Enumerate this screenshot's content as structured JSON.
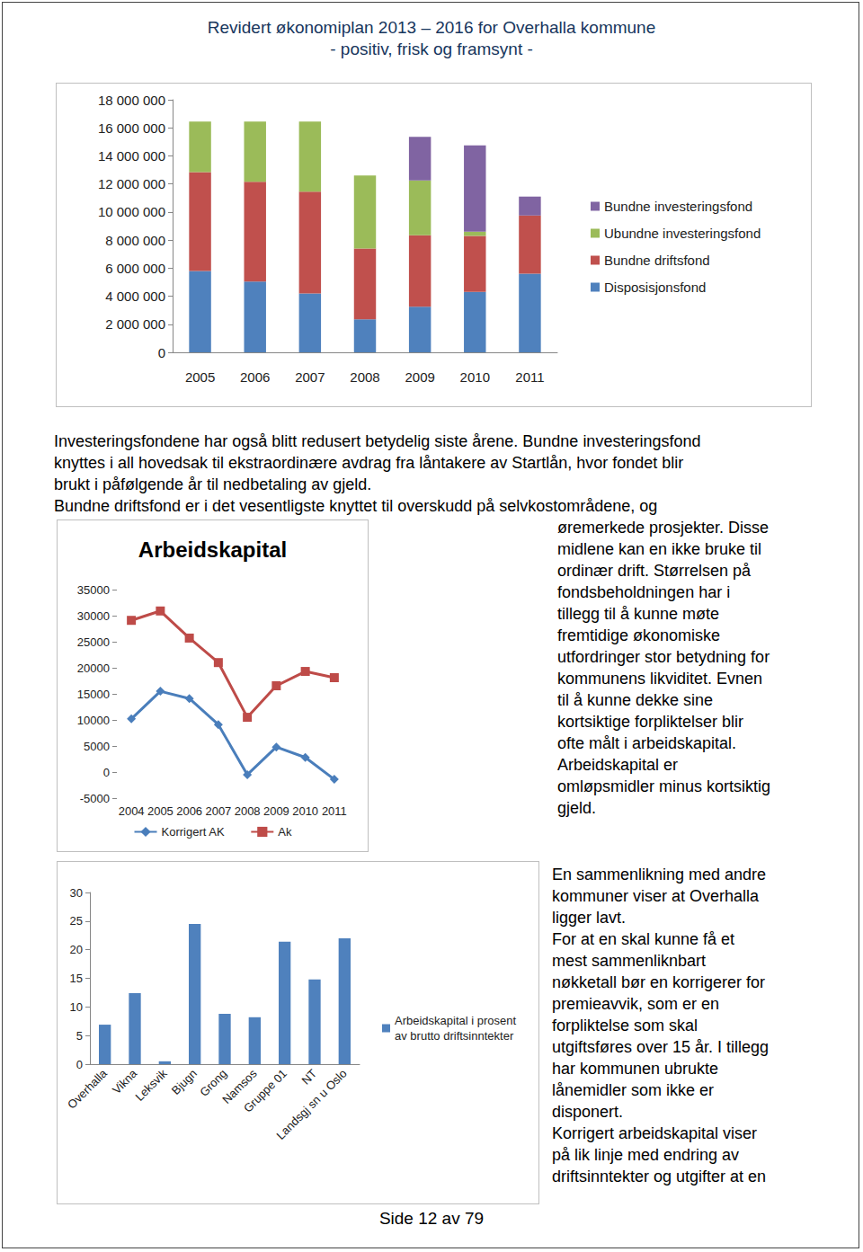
{
  "header": {
    "title": "Revidert økonomiplan 2013 – 2016 for Overhalla kommune",
    "subtitle": "- positiv, frisk og framsynt -"
  },
  "chart_data": [
    {
      "type": "bar",
      "stacked": true,
      "categories": [
        "2005",
        "2006",
        "2007",
        "2008",
        "2009",
        "2010",
        "2011"
      ],
      "series": [
        {
          "name": "Disposisjonsfond",
          "color": "#4f81bd",
          "values": [
            5800000,
            5050000,
            4200000,
            2350000,
            3250000,
            4300000,
            5600000
          ]
        },
        {
          "name": "Bundne driftsfond",
          "color": "#c0504d",
          "values": [
            7050000,
            7100000,
            7250000,
            5050000,
            5100000,
            4000000,
            4150000
          ]
        },
        {
          "name": "Ubundne investeringsfond",
          "color": "#9bbb59",
          "values": [
            3600000,
            4300000,
            5000000,
            5200000,
            3900000,
            300000,
            0
          ]
        },
        {
          "name": "Bundne investeringsfond",
          "color": "#8064a2",
          "values": [
            0,
            0,
            0,
            0,
            3100000,
            6150000,
            1350000
          ]
        }
      ],
      "ylim": [
        0,
        18000000
      ],
      "yticks": [
        0,
        {
          "value": 2000000,
          "label": "2 000 000"
        },
        {
          "value": 4000000,
          "label": "4 000 000"
        },
        {
          "value": 6000000,
          "label": "6 000 000"
        },
        {
          "value": 8000000,
          "label": "8 000 000"
        },
        {
          "value": 10000000,
          "label": "10 000 000"
        },
        {
          "value": 12000000,
          "label": "12 000 000"
        },
        {
          "value": 14000000,
          "label": "14 000 000"
        },
        {
          "value": 16000000,
          "label": "16 000 000"
        },
        {
          "value": 18000000,
          "label": "18 000 000"
        }
      ],
      "grid": false,
      "legend": "right"
    },
    {
      "type": "line",
      "title": "Arbeidskapital",
      "categories": [
        "2004",
        "2005",
        "2006",
        "2007",
        "2008",
        "2009",
        "2010",
        "2011"
      ],
      "series": [
        {
          "name": "Korrigert AK",
          "color": "#4a7ebb",
          "marker": "diamond",
          "values": [
            10200,
            15500,
            14100,
            9100,
            -500,
            4800,
            2800,
            -1400
          ]
        },
        {
          "name": "Ak",
          "color": "#be4b48",
          "marker": "square",
          "values": [
            29100,
            30900,
            25700,
            21000,
            10500,
            16550,
            19300,
            18100
          ]
        }
      ],
      "ylim": [
        -5000,
        35000
      ],
      "yticks": [
        -5000,
        0,
        5000,
        10000,
        15000,
        20000,
        25000,
        30000,
        35000
      ],
      "grid": false,
      "legend": "bottom"
    },
    {
      "type": "bar",
      "categories": [
        "Overhalla",
        "Vikna",
        "Leksvik",
        "Bjugn",
        "Grong",
        "Namsos",
        "Gruppe 01",
        "NT",
        "Landsgj sn u Oslo"
      ],
      "series": [
        {
          "name": "Arbeidskapital i prosent av brutto driftsinntekter",
          "color": "#4f81bd",
          "values": [
            6.9,
            12.4,
            0.5,
            24.5,
            8.8,
            8.2,
            21.4,
            14.8,
            22.0
          ]
        }
      ],
      "ylim": [
        0,
        30
      ],
      "yticks": [
        0,
        5,
        10,
        15,
        20,
        25,
        30
      ],
      "grid": false,
      "legend": "right"
    }
  ],
  "text": {
    "paragraph_full": [
      "Investeringsfondene har også blitt redusert betydelig siste årene. Bundne investeringsfond",
      "knyttes i all hovedsak til ekstraordinære avdrag fra låntakere av Startlån, hvor fondet blir",
      "brukt i påfølgende år til nedbetaling av gjeld.",
      "Bundne driftsfond er i det vesentligste knyttet til overskudd på selvkostområdene, og"
    ],
    "column_middle": [
      "øremerkede prosjekter. Disse",
      "midlene kan en ikke bruke til",
      "ordinær drift. Størrelsen på",
      "fondsbeholdningen har i",
      "tillegg til å kunne møte",
      "fremtidige økonomiske",
      "utfordringer stor betydning for",
      "kommunens likviditet. Evnen",
      "til å kunne dekke sine",
      "kortsiktige forpliktelser blir",
      "ofte målt i arbeidskapital.",
      "Arbeidskapital er",
      "omløpsmidler minus kortsiktig",
      "gjeld."
    ],
    "column_bottom": [
      "En sammenlikning med andre",
      "kommuner viser at Overhalla",
      "ligger lavt.",
      "For at en skal kunne få et",
      "mest sammenliknbart",
      "nøkketall bør en korrigerer for",
      "premieavvik, som er en",
      "forpliktelse som skal",
      "utgiftsføres over 15 år. I tillegg",
      "har kommunen ubrukte",
      "lånemidler som ikke er",
      "disponert.",
      "Korrigert arbeidskapital viser",
      "på lik linje med endring av",
      "driftsinntekter og utgifter at en"
    ]
  },
  "footer": "Side 12 av 79"
}
